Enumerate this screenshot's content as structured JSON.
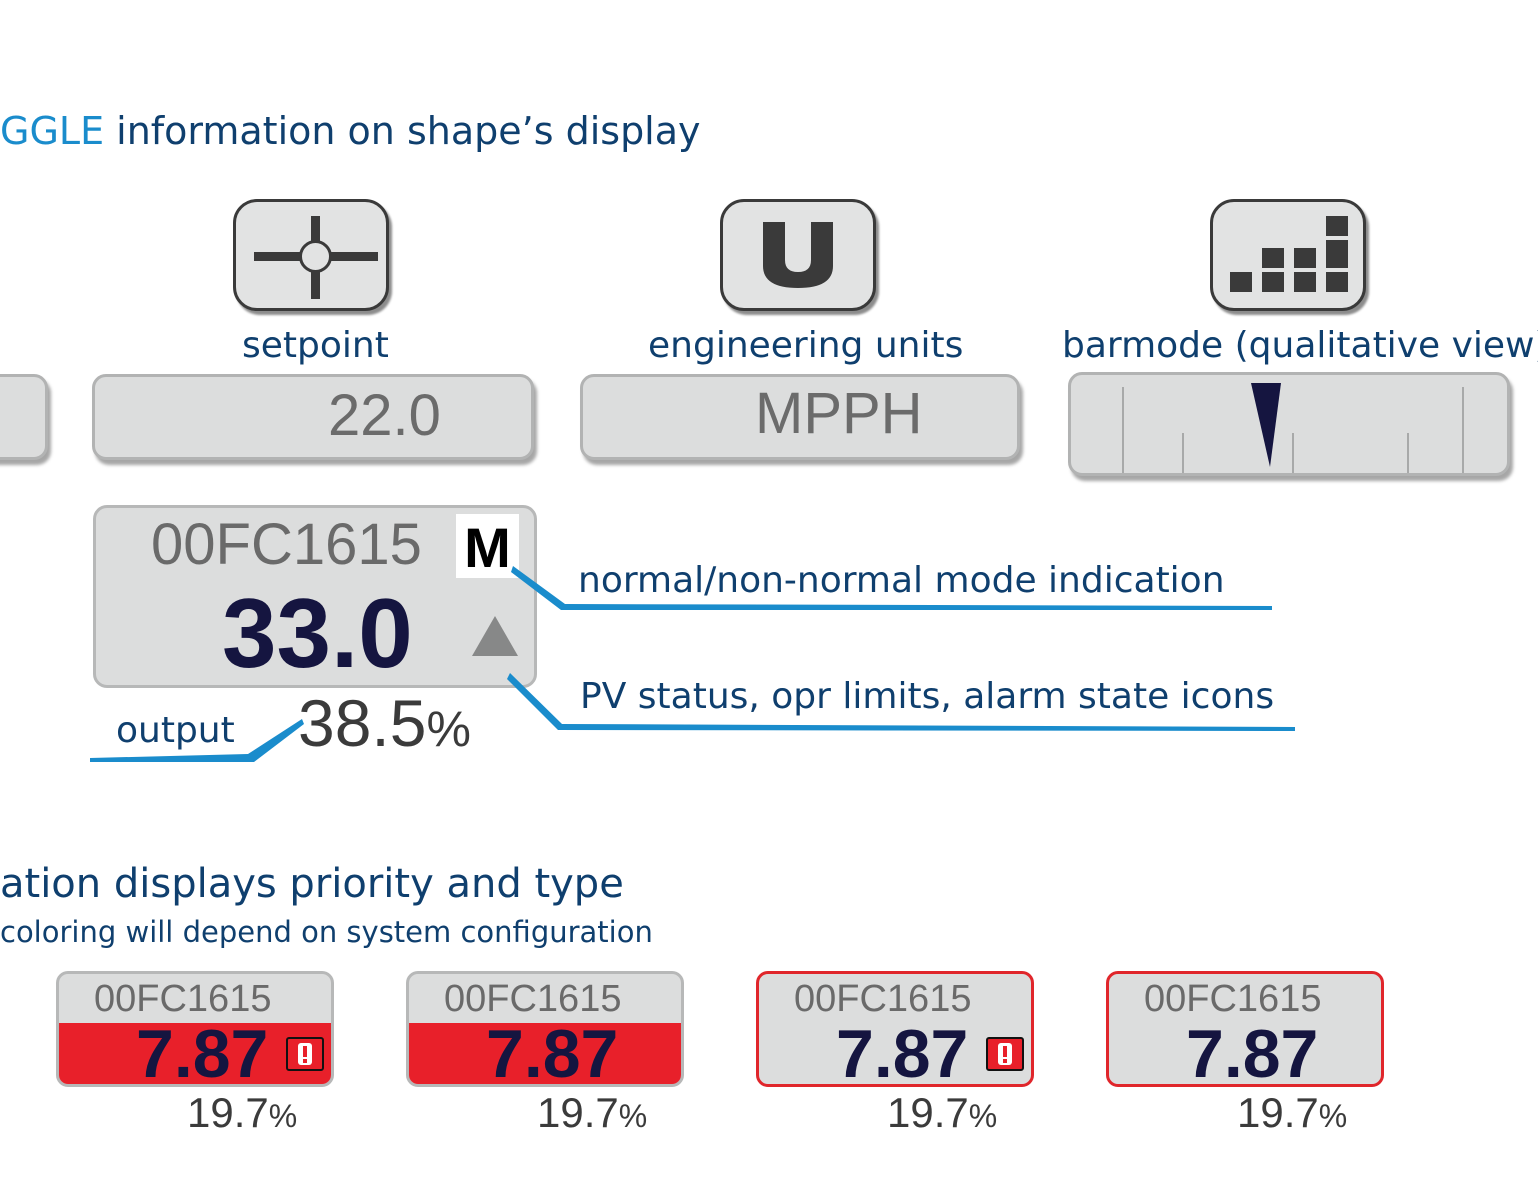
{
  "heading_toggle": {
    "accent": "GGLE",
    "rest": " information on shape’s display"
  },
  "toggles": {
    "setpoint": {
      "label": "setpoint",
      "value": "22.0"
    },
    "units": {
      "label": "engineering units",
      "value": "MPPH",
      "glyph": "U"
    },
    "barmode": {
      "label": "barmode (qualitative view)"
    }
  },
  "main_tile": {
    "tag": "00FC1615",
    "mode": "M",
    "pv": "33.0",
    "output_value": "38.5",
    "output_unit": "%"
  },
  "annotations": {
    "mode": "normal/non-normal mode indication",
    "status": "PV status, opr limits, alarm state icons",
    "output": "output"
  },
  "heading_alarm": {
    "title": "ation displays priority and type",
    "subtitle": "coloring will depend on system configuration"
  },
  "alarm_tiles": [
    {
      "tag": "00FC1615",
      "pv": "7.87",
      "output_value": "19.7",
      "output_unit": "%",
      "style": "red-fill",
      "icon": "!"
    },
    {
      "tag": "00FC1615",
      "pv": "7.87",
      "output_value": "19.7",
      "output_unit": "%",
      "style": "red-fill"
    },
    {
      "tag": "00FC1615",
      "pv": "7.87",
      "output_value": "19.7",
      "output_unit": "%",
      "style": "red-border",
      "icon": "!"
    },
    {
      "tag": "00FC1615",
      "pv": "7.87",
      "output_value": "19.7",
      "output_unit": "%",
      "style": "red-border"
    }
  ],
  "colors": {
    "heading": "#0f3f6e",
    "accent": "#1a8ccc",
    "leader": "#1a8ccc",
    "alarm_red": "#e8202a",
    "pv_navy": "#151540",
    "tile_gray": "#dcdddd"
  }
}
